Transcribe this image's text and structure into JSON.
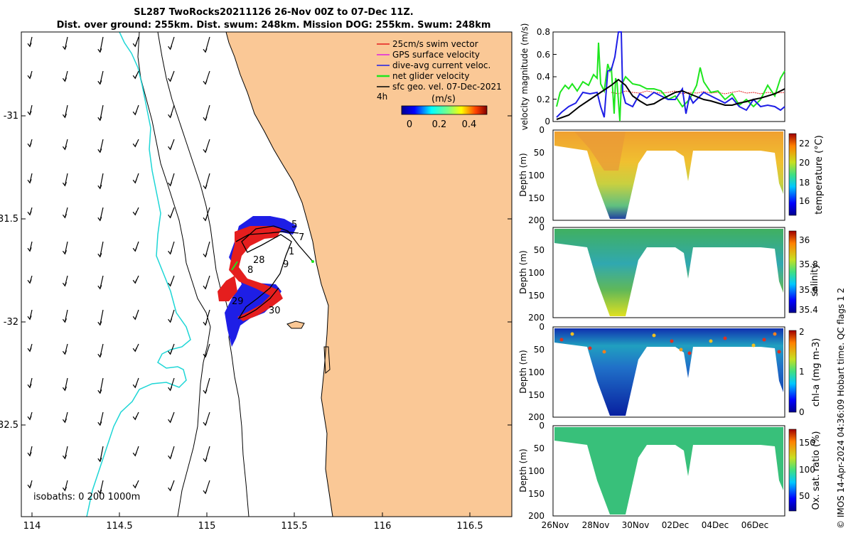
{
  "title": {
    "line1": "SL287 TwoRocks20211126 26-Nov 00Z to 07-Dec 11Z.",
    "line2": "Dist. over ground: 255km. Dist. swum: 248km. Mission DOG: 255km. Swum: 248km"
  },
  "map": {
    "lat_ticks": [
      "-31",
      "-31.5",
      "-32",
      "-32.5"
    ],
    "lon_ticks": [
      "114",
      "114.5",
      "115",
      "115.5",
      "116",
      "116.5"
    ],
    "isobath_label": "isobaths: 0   200  1000m",
    "day_labels": [
      "5",
      "7",
      "1",
      "28",
      "8",
      "9",
      "29",
      "30"
    ],
    "land_color": "#FAC896",
    "isobath_color": "#1ED6D6"
  },
  "legend": {
    "items": [
      {
        "label": "25cm/s swim vector",
        "color": "#E51E1E"
      },
      {
        "label": "GPS surface velocity",
        "color": "#E020E0"
      },
      {
        "label": "dive-avg current veloc.",
        "color": "#1E1EE6"
      },
      {
        "label": "net glider velocity",
        "color": "#1EE61E"
      },
      {
        "label": "sfc geo. vel. 07-Dec-2021",
        "color": "#000000"
      }
    ],
    "ref_label": "4h",
    "colorbar_title": "(m/s)",
    "colorbar_ticks": [
      "0",
      "0.2",
      "0.4"
    ]
  },
  "panels": {
    "velocity": {
      "ylabel": "velocity magnitude (m/s)",
      "yticks": [
        "0",
        "0.2",
        "0.4",
        "0.6",
        "0.8"
      ]
    },
    "temperature": {
      "ylabel": "Depth (m)",
      "cbar_label": "temperature (°C)",
      "cbar_ticks": [
        "16",
        "18",
        "20",
        "22"
      ]
    },
    "salinity": {
      "ylabel": "Depth (m)",
      "cbar_label": "salinity",
      "cbar_ticks": [
        "35.4",
        "35.6",
        "35.8",
        "36"
      ]
    },
    "chla": {
      "ylabel": "Depth (m)",
      "cbar_label": "chl-a (mg m-3)",
      "cbar_ticks": [
        "0",
        "1",
        "2"
      ]
    },
    "oxygen": {
      "ylabel": "Depth (m)",
      "cbar_label": "Ox. sat. ratio (%)",
      "cbar_ticks": [
        "50",
        "100",
        "150"
      ]
    },
    "depth_ticks": [
      "0",
      "50",
      "100",
      "150",
      "200"
    ],
    "date_ticks": [
      "26Nov",
      "28Nov",
      "30Nov",
      "02Dec",
      "04Dec",
      "06Dec"
    ]
  },
  "credit": "© IMOS 14-Apr-2024 04:36:09 Hobart time. QC flags 1  2"
}
